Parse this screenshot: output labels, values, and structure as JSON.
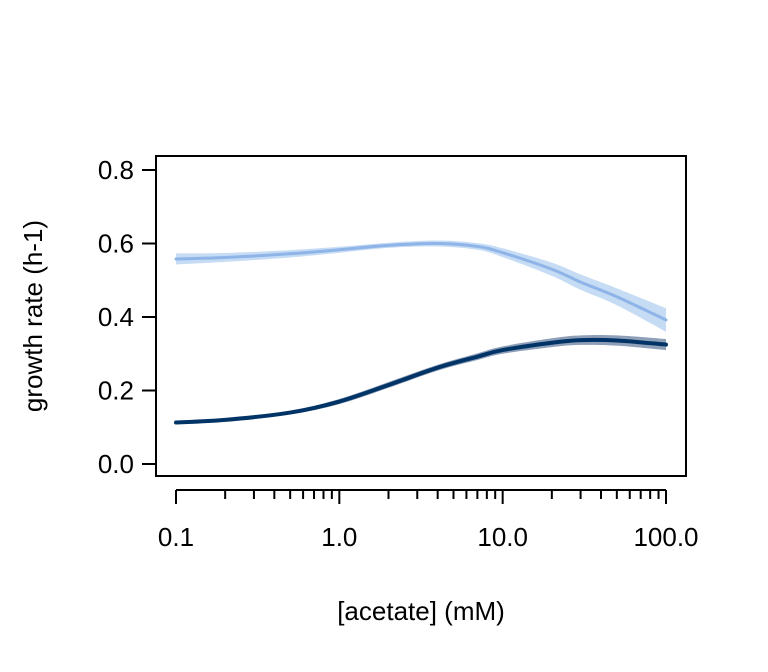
{
  "chart_data": {
    "type": "line",
    "title": "",
    "xlabel": "[acetate] (mM)",
    "ylabel": "growth rate (h-1)",
    "xscale": "log",
    "xlim": [
      0.1,
      100
    ],
    "ylim": [
      0.0,
      0.8
    ],
    "x_ticks": [
      0.1,
      1.0,
      10.0,
      100.0
    ],
    "x_tick_labels": [
      "0.1",
      "1.0",
      "10.0",
      "100.0"
    ],
    "y_ticks": [
      0.0,
      0.2,
      0.4,
      0.6,
      0.8
    ],
    "y_tick_labels": [
      "0.0",
      "0.2",
      "0.4",
      "0.6",
      "0.8"
    ],
    "grid": false,
    "legend": "none",
    "x": [
      0.1,
      0.2,
      0.5,
      1.0,
      2.0,
      4.0,
      7.0,
      10.0,
      20.0,
      30.0,
      50.0,
      100.0
    ],
    "series": [
      {
        "color": "#8fb4e8",
        "band_color": "#c6dcf5",
        "values": [
          0.558,
          0.562,
          0.572,
          0.583,
          0.595,
          0.6,
          0.592,
          0.575,
          0.53,
          0.495,
          0.455,
          0.392
        ],
        "lower": [
          0.543,
          0.55,
          0.562,
          0.575,
          0.588,
          0.592,
          0.583,
          0.563,
          0.512,
          0.474,
          0.432,
          0.36
        ],
        "upper": [
          0.573,
          0.574,
          0.582,
          0.591,
          0.602,
          0.608,
          0.601,
          0.587,
          0.548,
          0.516,
          0.478,
          0.424
        ]
      },
      {
        "color": "#003366",
        "band_color": "#8e9fb8",
        "values": [
          0.113,
          0.12,
          0.14,
          0.17,
          0.215,
          0.262,
          0.292,
          0.31,
          0.33,
          0.337,
          0.336,
          0.325
        ],
        "lower": [
          0.109,
          0.116,
          0.135,
          0.163,
          0.207,
          0.254,
          0.283,
          0.3,
          0.318,
          0.324,
          0.322,
          0.31
        ],
        "upper": [
          0.117,
          0.124,
          0.145,
          0.177,
          0.223,
          0.27,
          0.301,
          0.32,
          0.342,
          0.35,
          0.35,
          0.34
        ]
      }
    ]
  }
}
